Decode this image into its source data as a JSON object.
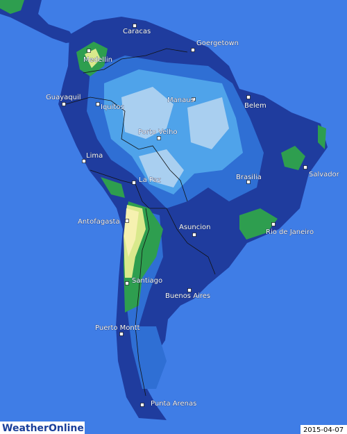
{
  "cities": [
    {
      "name": "Caracas"
    },
    {
      "name": "Goergetown"
    },
    {
      "name": "Medellin"
    },
    {
      "name": "Guayaquil"
    },
    {
      "name": "Iquitos"
    },
    {
      "name": "Manaus"
    },
    {
      "name": "Belem"
    },
    {
      "name": "Porto Velho"
    },
    {
      "name": "Lima"
    },
    {
      "name": "Salvador"
    },
    {
      "name": "La Paz"
    },
    {
      "name": "Brasilia"
    },
    {
      "name": "Antofagasta"
    },
    {
      "name": "Asuncion"
    },
    {
      "name": "Rio de Janeiro"
    },
    {
      "name": "Santiago"
    },
    {
      "name": "Buenos Aires"
    },
    {
      "name": "Puerto Montt"
    },
    {
      "name": "Punta Arenas"
    }
  ],
  "logo": "WeatherOnline",
  "date": "2015-04-07"
}
